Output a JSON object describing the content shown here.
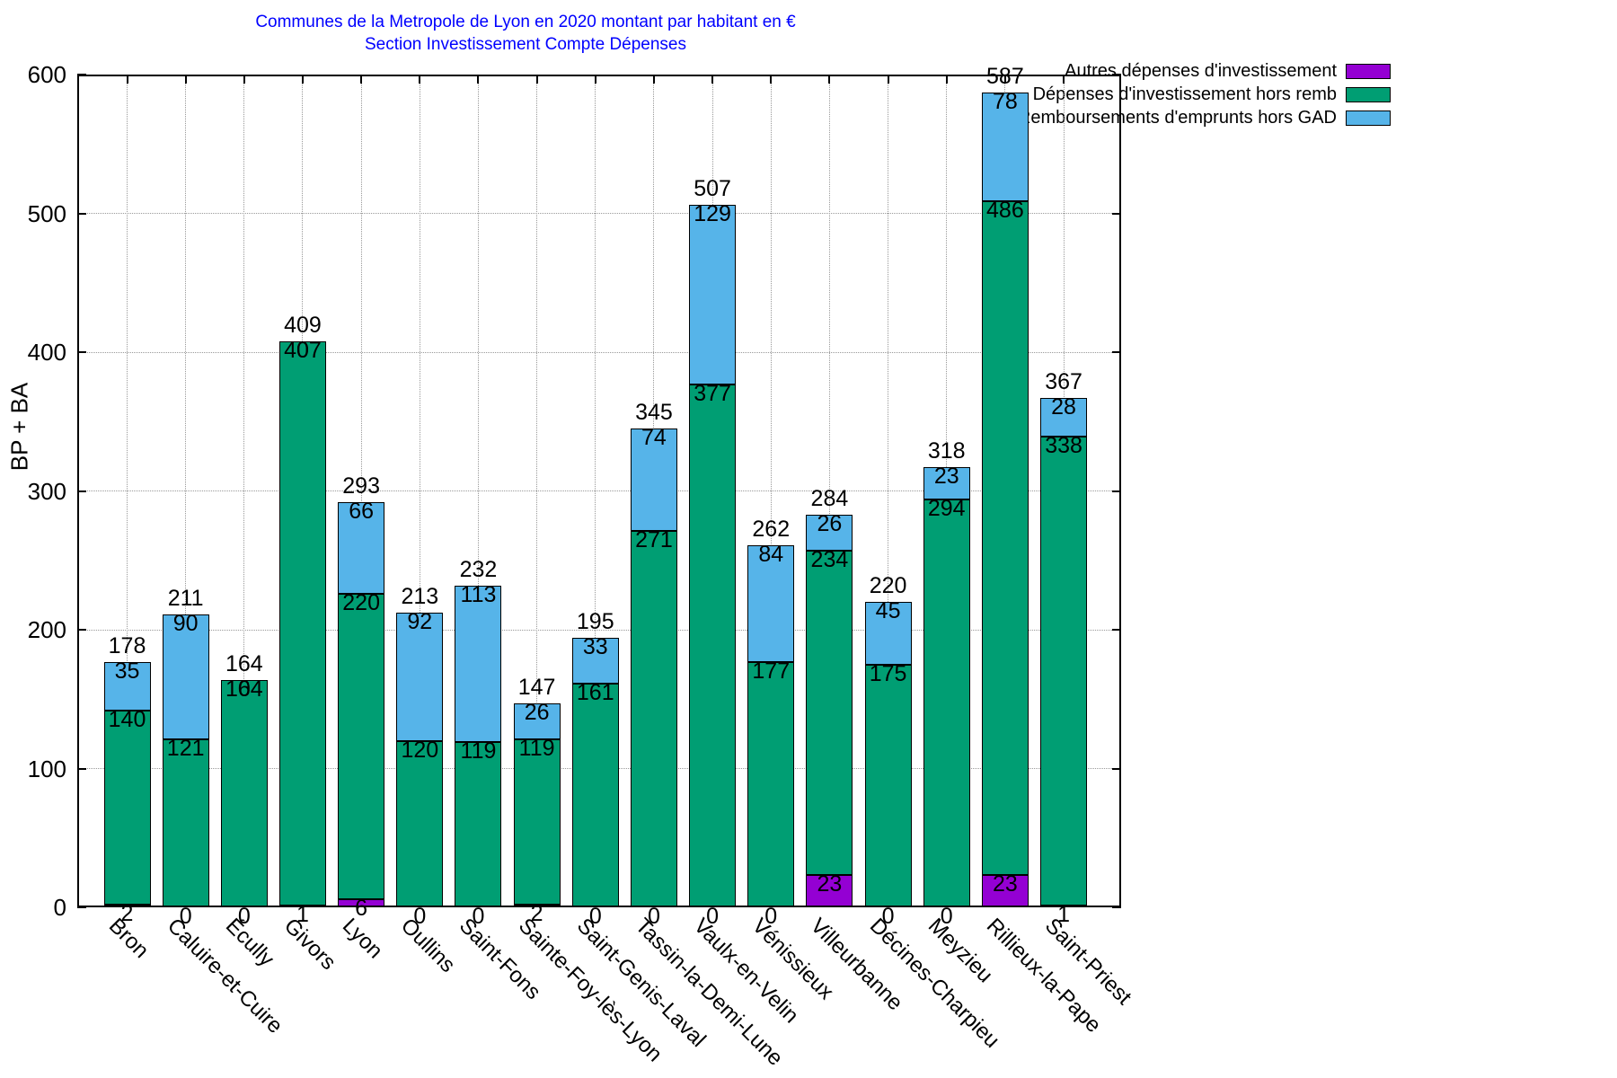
{
  "title_line1": "Communes de la Metropole de Lyon en 2020 montant par habitant en €",
  "title_line2": "Section Investissement Compte Dépenses",
  "title_color": "#0000ff",
  "chart_data": {
    "type": "bar",
    "stacked": true,
    "title": "Communes de la Metropole de Lyon en 2020 montant par habitant en € — Section Investissement Compte Dépenses",
    "xlabel": "",
    "ylabel": "BP + BA",
    "ylim": [
      0,
      600
    ],
    "yticks": [
      0,
      100,
      200,
      300,
      400,
      500,
      600
    ],
    "grid": true,
    "legend_position": "top-right-outside",
    "categories": [
      "Bron",
      "Caluire-et-Cuire",
      "Écully",
      "Givors",
      "Lyon",
      "Oullins",
      "Saint-Fons",
      "Sainte-Foy-lès-Lyon",
      "Saint-Genis-Laval",
      "Tassin-la-Demi-Lune",
      "Vaulx-en-Velin",
      "Vénissieux",
      "Villeurbanne",
      "Décines-Charpieu",
      "Meyzieu",
      "Rillieux-la-Pape",
      "Saint-Priest"
    ],
    "series": [
      {
        "name": "Autres dépenses d'investissement",
        "color": "#9400d3",
        "values": [
          2,
          0,
          0,
          1,
          6,
          0,
          0,
          2,
          0,
          0,
          0,
          0,
          23,
          0,
          0,
          23,
          1
        ]
      },
      {
        "name": "Dépenses d'investissement hors remb",
        "color": "#009e73",
        "values": [
          140,
          121,
          164,
          407,
          220,
          120,
          119,
          119,
          161,
          271,
          377,
          177,
          234,
          175,
          294,
          486,
          338
        ]
      },
      {
        "name": "Remboursements d'emprunts hors GAD",
        "color": "#56b4e9",
        "values": [
          35,
          90,
          0,
          0,
          66,
          92,
          113,
          26,
          33,
          74,
          129,
          84,
          26,
          45,
          23,
          78,
          28
        ]
      }
    ],
    "totals": [
      178,
      211,
      164,
      409,
      293,
      213,
      232,
      147,
      195,
      345,
      507,
      262,
      284,
      220,
      318,
      587,
      367
    ]
  }
}
